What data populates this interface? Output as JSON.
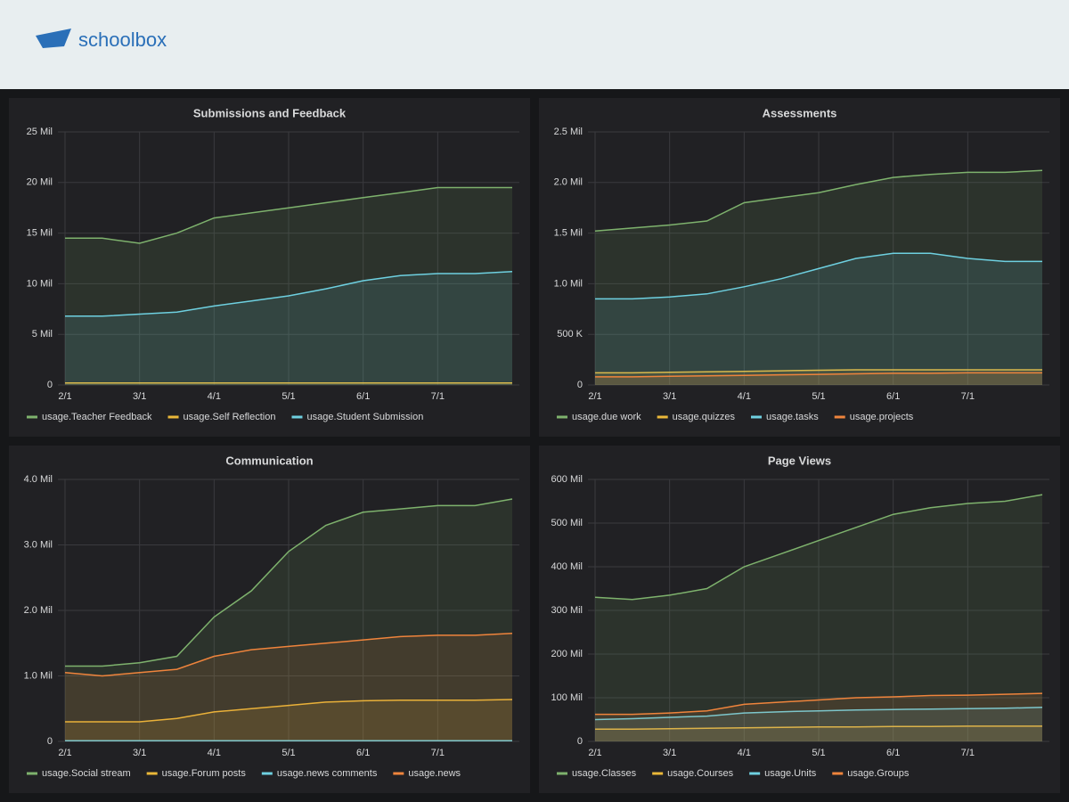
{
  "header": {
    "logo": "schoolbox"
  },
  "chart_data": [
    {
      "type": "line",
      "title": "Submissions and Feedback",
      "categories": [
        "2/1",
        null,
        "3/1",
        null,
        "4/1",
        null,
        "5/1",
        null,
        "6/1",
        null,
        "7/1",
        null,
        null
      ],
      "ylim": [
        0,
        25000000
      ],
      "yticks": [
        0,
        {
          "value": 5000000,
          "label": "5 Mil"
        },
        {
          "value": 10000000,
          "label": "10 Mil"
        },
        {
          "value": 15000000,
          "label": "15 Mil"
        },
        {
          "value": 20000000,
          "label": "20 Mil"
        },
        {
          "value": 25000000,
          "label": "25 Mil"
        }
      ],
      "grid": true,
      "legend": "bottom",
      "series": [
        {
          "name": "usage.Teacher Feedback",
          "color": "#7eb26d",
          "values": [
            14500000,
            14500000,
            14000000,
            15000000,
            16500000,
            17000000,
            17500000,
            18000000,
            18500000,
            19000000,
            19500000,
            19500000,
            19500000
          ]
        },
        {
          "name": "usage.Self Reflection",
          "color": "#eab839",
          "values": [
            200000,
            200000,
            200000,
            200000,
            200000,
            200000,
            200000,
            200000,
            200000,
            200000,
            200000,
            200000,
            200000
          ]
        },
        {
          "name": "usage.Student Submission",
          "color": "#6ed0e0",
          "values": [
            6800000,
            6800000,
            7000000,
            7200000,
            7800000,
            8300000,
            8800000,
            9500000,
            10300000,
            10800000,
            11000000,
            11000000,
            11200000
          ]
        }
      ]
    },
    {
      "type": "line",
      "title": "Assessments",
      "categories": [
        "2/1",
        null,
        "3/1",
        null,
        "4/1",
        null,
        "5/1",
        null,
        "6/1",
        null,
        "7/1",
        null,
        null
      ],
      "ylim": [
        0,
        2500000
      ],
      "yticks": [
        0,
        {
          "value": 500000,
          "label": "500 K"
        },
        {
          "value": 1000000,
          "label": "1.0 Mil"
        },
        {
          "value": 1500000,
          "label": "1.5 Mil"
        },
        {
          "value": 2000000,
          "label": "2.0 Mil"
        },
        {
          "value": 2500000,
          "label": "2.5 Mil"
        }
      ],
      "grid": true,
      "legend": "bottom",
      "series": [
        {
          "name": "usage.due work",
          "color": "#7eb26d",
          "values": [
            1520000,
            1550000,
            1580000,
            1620000,
            1800000,
            1850000,
            1900000,
            1980000,
            2050000,
            2080000,
            2100000,
            2100000,
            2120000
          ]
        },
        {
          "name": "usage.quizzes",
          "color": "#eab839",
          "values": [
            120000,
            120000,
            125000,
            130000,
            135000,
            140000,
            145000,
            150000,
            150000,
            150000,
            150000,
            150000,
            150000
          ]
        },
        {
          "name": "usage.tasks",
          "color": "#6ed0e0",
          "values": [
            850000,
            850000,
            870000,
            900000,
            970000,
            1050000,
            1150000,
            1250000,
            1300000,
            1300000,
            1250000,
            1220000,
            1220000
          ]
        },
        {
          "name": "usage.projects",
          "color": "#ef843c",
          "values": [
            80000,
            80000,
            85000,
            90000,
            95000,
            100000,
            105000,
            110000,
            115000,
            115000,
            120000,
            120000,
            120000
          ]
        }
      ]
    },
    {
      "type": "line",
      "title": "Communication",
      "categories": [
        "2/1",
        null,
        "3/1",
        null,
        "4/1",
        null,
        "5/1",
        null,
        "6/1",
        null,
        "7/1",
        null,
        null
      ],
      "ylim": [
        0,
        4000000
      ],
      "yticks": [
        0,
        {
          "value": 1000000,
          "label": "1.0 Mil"
        },
        {
          "value": 2000000,
          "label": "2.0 Mil"
        },
        {
          "value": 3000000,
          "label": "3.0 Mil"
        },
        {
          "value": 4000000,
          "label": "4.0 Mil"
        }
      ],
      "grid": true,
      "legend": "bottom",
      "series": [
        {
          "name": "usage.Social stream",
          "color": "#7eb26d",
          "values": [
            1150000,
            1150000,
            1200000,
            1300000,
            1900000,
            2300000,
            2900000,
            3300000,
            3500000,
            3550000,
            3600000,
            3600000,
            3700000
          ]
        },
        {
          "name": "usage.Forum posts",
          "color": "#eab839",
          "values": [
            300000,
            300000,
            300000,
            350000,
            450000,
            500000,
            550000,
            600000,
            620000,
            630000,
            630000,
            630000,
            640000
          ]
        },
        {
          "name": "usage.news comments",
          "color": "#6ed0e0",
          "values": [
            10000,
            10000,
            10000,
            10000,
            10000,
            10000,
            10000,
            10000,
            10000,
            10000,
            10000,
            10000,
            10000
          ]
        },
        {
          "name": "usage.news",
          "color": "#ef843c",
          "values": [
            1050000,
            1000000,
            1050000,
            1100000,
            1300000,
            1400000,
            1450000,
            1500000,
            1550000,
            1600000,
            1620000,
            1620000,
            1650000
          ]
        }
      ]
    },
    {
      "type": "line",
      "title": "Page Views",
      "categories": [
        "2/1",
        null,
        "3/1",
        null,
        "4/1",
        null,
        "5/1",
        null,
        "6/1",
        null,
        "7/1",
        null,
        null
      ],
      "ylim": [
        0,
        600000000
      ],
      "yticks": [
        0,
        {
          "value": 100000000,
          "label": "100 Mil"
        },
        {
          "value": 200000000,
          "label": "200 Mil"
        },
        {
          "value": 300000000,
          "label": "300 Mil"
        },
        {
          "value": 400000000,
          "label": "400 Mil"
        },
        {
          "value": 500000000,
          "label": "500 Mil"
        },
        {
          "value": 600000000,
          "label": "600 Mil"
        }
      ],
      "grid": true,
      "legend": "bottom",
      "series": [
        {
          "name": "usage.Classes",
          "color": "#7eb26d",
          "values": [
            330000000,
            325000000,
            335000000,
            350000000,
            400000000,
            430000000,
            460000000,
            490000000,
            520000000,
            535000000,
            545000000,
            550000000,
            565000000
          ]
        },
        {
          "name": "usage.Courses",
          "color": "#eab839",
          "values": [
            28000000,
            28000000,
            29000000,
            30000000,
            31000000,
            32000000,
            33000000,
            33000000,
            34000000,
            34000000,
            35000000,
            35000000,
            35000000
          ]
        },
        {
          "name": "usage.Units",
          "color": "#6ed0e0",
          "values": [
            50000000,
            52000000,
            55000000,
            58000000,
            65000000,
            68000000,
            70000000,
            72000000,
            73000000,
            74000000,
            75000000,
            76000000,
            78000000
          ]
        },
        {
          "name": "usage.Groups",
          "color": "#ef843c",
          "values": [
            62000000,
            62000000,
            65000000,
            70000000,
            85000000,
            90000000,
            95000000,
            100000000,
            102000000,
            105000000,
            106000000,
            108000000,
            110000000
          ]
        }
      ]
    }
  ]
}
